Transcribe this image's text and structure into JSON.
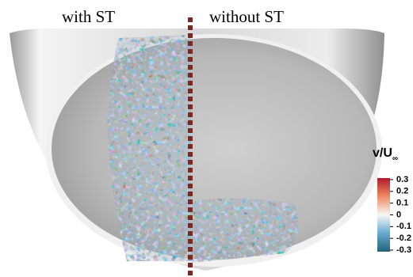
{
  "labels": {
    "left": "with ST",
    "right": "without ST"
  },
  "colorbar": {
    "title": "v/U",
    "title_subscript": "∞",
    "range": [
      -0.3,
      0.3
    ],
    "ticks": [
      0.3,
      0.2,
      0.1,
      0,
      -0.1,
      -0.2,
      -0.3
    ]
  }
}
